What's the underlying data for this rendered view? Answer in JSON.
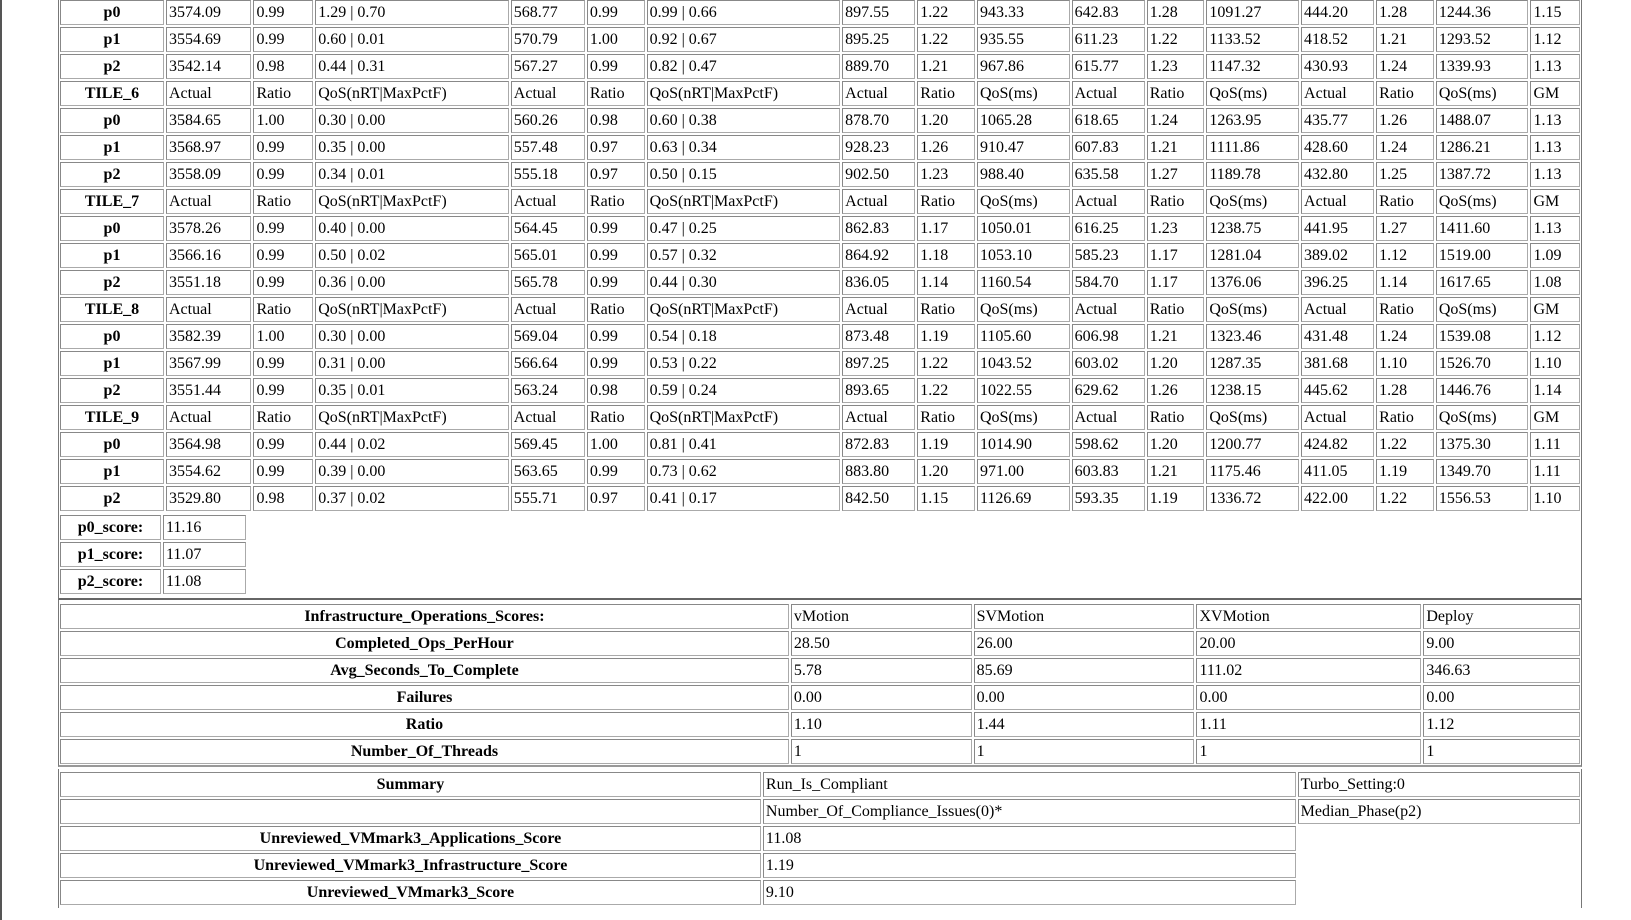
{
  "main": {
    "header_cols": [
      "Actual",
      "Ratio",
      "QoS(nRT|MaxPctF)",
      "Actual",
      "Ratio",
      "QoS(nRT|MaxPctF)",
      "Actual",
      "Ratio",
      "QoS(ms)",
      "Actual",
      "Ratio",
      "QoS(ms)",
      "Actual",
      "Ratio",
      "QoS(ms)",
      "GM"
    ],
    "blocks": [
      {
        "tile": null,
        "rows": [
          [
            "p0",
            "3574.09",
            "0.99",
            "1.29 | 0.70",
            "568.77",
            "0.99",
            "0.99 | 0.66",
            "897.55",
            "1.22",
            "943.33",
            "642.83",
            "1.28",
            "1091.27",
            "444.20",
            "1.28",
            "1244.36",
            "1.15"
          ],
          [
            "p1",
            "3554.69",
            "0.99",
            "0.60 | 0.01",
            "570.79",
            "1.00",
            "0.92 | 0.67",
            "895.25",
            "1.22",
            "935.55",
            "611.23",
            "1.22",
            "1133.52",
            "418.52",
            "1.21",
            "1293.52",
            "1.12"
          ],
          [
            "p2",
            "3542.14",
            "0.98",
            "0.44 | 0.31",
            "567.27",
            "0.99",
            "0.82 | 0.47",
            "889.70",
            "1.21",
            "967.86",
            "615.77",
            "1.23",
            "1147.32",
            "430.93",
            "1.24",
            "1339.93",
            "1.13"
          ]
        ]
      },
      {
        "tile": "TILE_6",
        "rows": [
          [
            "p0",
            "3584.65",
            "1.00",
            "0.30 | 0.00",
            "560.26",
            "0.98",
            "0.60 | 0.38",
            "878.70",
            "1.20",
            "1065.28",
            "618.65",
            "1.24",
            "1263.95",
            "435.77",
            "1.26",
            "1488.07",
            "1.13"
          ],
          [
            "p1",
            "3568.97",
            "0.99",
            "0.35 | 0.00",
            "557.48",
            "0.97",
            "0.63 | 0.34",
            "928.23",
            "1.26",
            "910.47",
            "607.83",
            "1.21",
            "1111.86",
            "428.60",
            "1.24",
            "1286.21",
            "1.13"
          ],
          [
            "p2",
            "3558.09",
            "0.99",
            "0.34 | 0.01",
            "555.18",
            "0.97",
            "0.50 | 0.15",
            "902.50",
            "1.23",
            "988.40",
            "635.58",
            "1.27",
            "1189.78",
            "432.80",
            "1.25",
            "1387.72",
            "1.13"
          ]
        ]
      },
      {
        "tile": "TILE_7",
        "rows": [
          [
            "p0",
            "3578.26",
            "0.99",
            "0.40 | 0.00",
            "564.45",
            "0.99",
            "0.47 | 0.25",
            "862.83",
            "1.17",
            "1050.01",
            "616.25",
            "1.23",
            "1238.75",
            "441.95",
            "1.27",
            "1411.60",
            "1.13"
          ],
          [
            "p1",
            "3566.16",
            "0.99",
            "0.50 | 0.02",
            "565.01",
            "0.99",
            "0.57 | 0.32",
            "864.92",
            "1.18",
            "1053.10",
            "585.23",
            "1.17",
            "1281.04",
            "389.02",
            "1.12",
            "1519.00",
            "1.09"
          ],
          [
            "p2",
            "3551.18",
            "0.99",
            "0.36 | 0.00",
            "565.78",
            "0.99",
            "0.44 | 0.30",
            "836.05",
            "1.14",
            "1160.54",
            "584.70",
            "1.17",
            "1376.06",
            "396.25",
            "1.14",
            "1617.65",
            "1.08"
          ]
        ]
      },
      {
        "tile": "TILE_8",
        "rows": [
          [
            "p0",
            "3582.39",
            "1.00",
            "0.30 | 0.00",
            "569.04",
            "0.99",
            "0.54 | 0.18",
            "873.48",
            "1.19",
            "1105.60",
            "606.98",
            "1.21",
            "1323.46",
            "431.48",
            "1.24",
            "1539.08",
            "1.12"
          ],
          [
            "p1",
            "3567.99",
            "0.99",
            "0.31 | 0.00",
            "566.64",
            "0.99",
            "0.53 | 0.22",
            "897.25",
            "1.22",
            "1043.52",
            "603.02",
            "1.20",
            "1287.35",
            "381.68",
            "1.10",
            "1526.70",
            "1.10"
          ],
          [
            "p2",
            "3551.44",
            "0.99",
            "0.35 | 0.01",
            "563.24",
            "0.98",
            "0.59 | 0.24",
            "893.65",
            "1.22",
            "1022.55",
            "629.62",
            "1.26",
            "1238.15",
            "445.62",
            "1.28",
            "1446.76",
            "1.14"
          ]
        ]
      },
      {
        "tile": "TILE_9",
        "rows": [
          [
            "p0",
            "3564.98",
            "0.99",
            "0.44 | 0.02",
            "569.45",
            "1.00",
            "0.81 | 0.41",
            "872.83",
            "1.19",
            "1014.90",
            "598.62",
            "1.20",
            "1200.77",
            "424.82",
            "1.22",
            "1375.30",
            "1.11"
          ],
          [
            "p1",
            "3554.62",
            "0.99",
            "0.39 | 0.00",
            "563.65",
            "0.99",
            "0.73 | 0.62",
            "883.80",
            "1.20",
            "971.00",
            "603.83",
            "1.21",
            "1175.46",
            "411.05",
            "1.19",
            "1349.70",
            "1.11"
          ],
          [
            "p2",
            "3529.80",
            "0.98",
            "0.37 | 0.02",
            "555.71",
            "0.97",
            "0.41 | 0.17",
            "842.50",
            "1.15",
            "1126.69",
            "593.35",
            "1.19",
            "1336.72",
            "422.00",
            "1.22",
            "1556.53",
            "1.10"
          ]
        ]
      }
    ]
  },
  "scores": [
    [
      "p0_score:",
      "11.16"
    ],
    [
      "p1_score:",
      "11.07"
    ],
    [
      "p2_score:",
      "11.08"
    ]
  ],
  "ops": {
    "header": [
      "Infrastructure_Operations_Scores:",
      "vMotion",
      "SVMotion",
      "XVMotion",
      "Deploy"
    ],
    "rows": [
      [
        "Completed_Ops_PerHour",
        "28.50",
        "26.00",
        "20.00",
        "9.00"
      ],
      [
        "Avg_Seconds_To_Complete",
        "5.78",
        "85.69",
        "111.02",
        "346.63"
      ],
      [
        "Failures",
        "0.00",
        "0.00",
        "0.00",
        "0.00"
      ],
      [
        "Ratio",
        "1.10",
        "1.44",
        "1.11",
        "1.12"
      ],
      [
        "Number_Of_Threads",
        "1",
        "1",
        "1",
        "1"
      ]
    ]
  },
  "summary": {
    "rows": [
      [
        "Summary",
        "Run_Is_Compliant",
        "Turbo_Setting:0"
      ],
      [
        "",
        "Number_Of_Compliance_Issues(0)*",
        "Median_Phase(p2)"
      ],
      [
        "Unreviewed_VMmark3_Applications_Score",
        "11.08"
      ],
      [
        "Unreviewed_VMmark3_Infrastructure_Score",
        "1.19"
      ],
      [
        "Unreviewed_VMmark3_Score",
        "9.10"
      ]
    ]
  }
}
